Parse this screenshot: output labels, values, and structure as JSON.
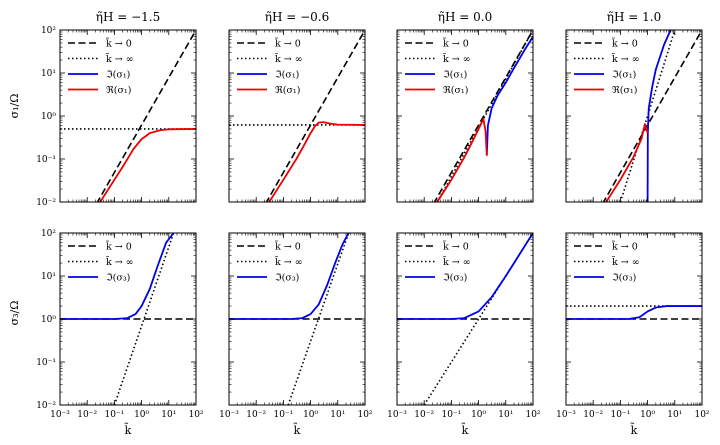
{
  "figure": {
    "row_ylabels": [
      "σ₁/Ω",
      "σ₃/Ω"
    ],
    "xlabel": "k̃",
    "x_tick_labels": [
      "10⁻³",
      "10⁻²",
      "10⁻¹",
      "10⁰",
      "10¹",
      "10²"
    ],
    "y_tick_labels": [
      "10⁻²",
      "10⁻¹",
      "10⁰",
      "10¹",
      "10²"
    ],
    "colors": {
      "black": "#000000",
      "blue": "#0000ee",
      "red": "#ee0000"
    }
  },
  "chart_data": [
    {
      "type": "line",
      "row": 0,
      "col": 0,
      "title": "η̃H = −1.5",
      "xscale": "log",
      "yscale": "log",
      "xlim": [
        0.001,
        100
      ],
      "ylim": [
        0.01,
        100
      ],
      "series": [
        {
          "name": "k̃ → 0",
          "style": "dashed",
          "color": "#000000",
          "x": [
            0.001,
            100
          ],
          "y": [
            0.0003,
            100
          ]
        },
        {
          "name": "k̃ → ∞",
          "style": "dotted",
          "color": "#000000",
          "x": [
            0.001,
            100
          ],
          "y": [
            0.5,
            0.5
          ]
        },
        {
          "name": "ℑ(σ₁)",
          "style": "solid",
          "color": "#0000ee",
          "x": [],
          "y": []
        },
        {
          "name": "ℜ(σ₁)",
          "style": "solid",
          "color": "#ee0000",
          "x": [
            0.03,
            0.1,
            0.2,
            0.5,
            1,
            2,
            5,
            10,
            100
          ],
          "y": [
            0.01,
            0.033,
            0.065,
            0.17,
            0.29,
            0.4,
            0.47,
            0.49,
            0.5
          ]
        }
      ],
      "legend": {
        "entries": [
          "k̃ → 0",
          "k̃ → ∞",
          "ℑ(σ₁)",
          "ℜ(σ₁)"
        ],
        "loc": "upper-left"
      }
    },
    {
      "type": "line",
      "row": 0,
      "col": 1,
      "title": "η̃H = −0.6",
      "xscale": "log",
      "yscale": "log",
      "xlim": [
        0.001,
        100
      ],
      "ylim": [
        0.01,
        100
      ],
      "series": [
        {
          "name": "k̃ → 0",
          "style": "dashed",
          "color": "#000000",
          "x": [
            0.001,
            100
          ],
          "y": [
            0.0003,
            100
          ]
        },
        {
          "name": "k̃ → ∞",
          "style": "dotted",
          "color": "#000000",
          "x": [
            0.001,
            100
          ],
          "y": [
            0.62,
            0.62
          ]
        },
        {
          "name": "ℑ(σ₁)",
          "style": "solid",
          "color": "#0000ee",
          "x": [],
          "y": []
        },
        {
          "name": "ℜ(σ₁)",
          "style": "solid",
          "color": "#ee0000",
          "x": [
            0.03,
            0.1,
            0.3,
            0.6,
            1,
            1.5,
            2,
            3,
            5,
            10,
            100
          ],
          "y": [
            0.01,
            0.033,
            0.1,
            0.22,
            0.4,
            0.6,
            0.7,
            0.72,
            0.67,
            0.63,
            0.62
          ]
        }
      ],
      "legend": {
        "entries": [
          "k̃ → 0",
          "k̃ → ∞",
          "ℑ(σ₁)",
          "ℜ(σ₁)"
        ],
        "loc": "upper-left"
      }
    },
    {
      "type": "line",
      "row": 0,
      "col": 2,
      "title": "η̃H = 0.0",
      "xscale": "log",
      "yscale": "log",
      "xlim": [
        0.001,
        100
      ],
      "ylim": [
        0.01,
        100
      ],
      "series": [
        {
          "name": "k̃ → 0",
          "style": "dashed",
          "color": "#000000",
          "x": [
            0.001,
            100
          ],
          "y": [
            0.0003,
            100
          ]
        },
        {
          "name": "k̃ → ∞",
          "style": "dotted",
          "color": "#000000",
          "x": [
            0.03,
            100
          ],
          "y": [
            0.01,
            100
          ]
        },
        {
          "name": "ℑ(σ₁)",
          "style": "solid",
          "color": "#0000ee",
          "x": [
            2,
            2.2,
            3,
            5,
            10,
            20,
            50,
            100
          ],
          "y": [
            0.12,
            0.6,
            1.5,
            3,
            6,
            13,
            35,
            70
          ]
        },
        {
          "name": "ℜ(σ₁)",
          "style": "solid",
          "color": "#ee0000",
          "x": [
            0.03,
            0.1,
            0.3,
            0.6,
            1,
            1.5,
            1.8,
            2
          ],
          "y": [
            0.01,
            0.033,
            0.11,
            0.26,
            0.5,
            0.85,
            0.45,
            0.12
          ]
        }
      ],
      "legend": {
        "entries": [
          "k̃ → 0",
          "k̃ → ∞",
          "ℑ(σ₁)",
          "ℜ(σ₁)"
        ],
        "loc": "upper-left"
      }
    },
    {
      "type": "line",
      "row": 0,
      "col": 3,
      "title": "η̃H = 1.0",
      "xscale": "log",
      "yscale": "log",
      "xlim": [
        0.001,
        100
      ],
      "ylim": [
        0.01,
        100
      ],
      "series": [
        {
          "name": "k̃ → 0",
          "style": "dashed",
          "color": "#000000",
          "x": [
            0.001,
            100
          ],
          "y": [
            0.0003,
            100
          ]
        },
        {
          "name": "k̃ → ∞",
          "style": "dotted",
          "color": "#000000",
          "x": [
            0.1,
            10
          ],
          "y": [
            0.01,
            100
          ]
        },
        {
          "name": "ℑ(σ₁)",
          "style": "solid",
          "color": "#0000ee",
          "x": [
            1,
            1.02,
            1.1,
            1.5,
            2,
            4,
            7
          ],
          "y": [
            0.01,
            0.4,
            1.5,
            5,
            12,
            45,
            100
          ]
        },
        {
          "name": "ℜ(σ₁)",
          "style": "solid",
          "color": "#ee0000",
          "x": [
            0.03,
            0.1,
            0.3,
            0.6,
            0.8,
            1
          ],
          "y": [
            0.01,
            0.033,
            0.11,
            0.3,
            0.65,
            0.4
          ]
        }
      ],
      "legend": {
        "entries": [
          "k̃ → 0",
          "k̃ → ∞",
          "ℑ(σ₁)",
          "ℜ(σ₁)"
        ],
        "loc": "upper-left"
      }
    },
    {
      "type": "line",
      "row": 1,
      "col": 0,
      "title": "",
      "xscale": "log",
      "yscale": "log",
      "xlim": [
        0.001,
        100
      ],
      "ylim": [
        0.01,
        100
      ],
      "series": [
        {
          "name": "k̃ → 0",
          "style": "dashed",
          "color": "#000000",
          "x": [
            0.001,
            100
          ],
          "y": [
            1,
            1
          ]
        },
        {
          "name": "k̃ → ∞",
          "style": "dotted",
          "color": "#000000",
          "x": [
            0.1,
            15
          ],
          "y": [
            0.01,
            100
          ]
        },
        {
          "name": "ℑ(σ₃)",
          "style": "solid",
          "color": "#0000ee",
          "x": [
            0.001,
            0.1,
            0.3,
            0.6,
            1,
            2,
            4,
            8,
            15
          ],
          "y": [
            1,
            1,
            1.05,
            1.3,
            2,
            5,
            18,
            60,
            100
          ]
        }
      ],
      "legend": {
        "entries": [
          "k̃ → 0",
          "k̃ → ∞",
          "ℑ(σ₃)"
        ],
        "loc": "upper-left"
      }
    },
    {
      "type": "line",
      "row": 1,
      "col": 1,
      "title": "",
      "xscale": "log",
      "yscale": "log",
      "xlim": [
        0.001,
        100
      ],
      "ylim": [
        0.01,
        100
      ],
      "series": [
        {
          "name": "k̃ → 0",
          "style": "dashed",
          "color": "#000000",
          "x": [
            0.001,
            100
          ],
          "y": [
            1,
            1
          ]
        },
        {
          "name": "k̃ → ∞",
          "style": "dotted",
          "color": "#000000",
          "x": [
            0.15,
            25
          ],
          "y": [
            0.01,
            100
          ]
        },
        {
          "name": "ℑ(σ₃)",
          "style": "solid",
          "color": "#0000ee",
          "x": [
            0.001,
            0.2,
            0.5,
            1,
            2,
            4,
            8,
            15,
            25
          ],
          "y": [
            1,
            1,
            1.05,
            1.3,
            2.2,
            6,
            20,
            55,
            100
          ]
        }
      ],
      "legend": {
        "entries": [
          "k̃ → 0",
          "k̃ → ∞",
          "ℑ(σ₃)"
        ],
        "loc": "upper-left"
      }
    },
    {
      "type": "line",
      "row": 1,
      "col": 2,
      "title": "",
      "xscale": "log",
      "yscale": "log",
      "xlim": [
        0.001,
        100
      ],
      "ylim": [
        0.01,
        100
      ],
      "series": [
        {
          "name": "k̃ → 0",
          "style": "dashed",
          "color": "#000000",
          "x": [
            0.001,
            100
          ],
          "y": [
            1,
            1
          ]
        },
        {
          "name": "k̃ → ∞",
          "style": "dotted",
          "color": "#000000",
          "x": [
            0.01,
            100
          ],
          "y": [
            0.01,
            100
          ]
        },
        {
          "name": "ℑ(σ₃)",
          "style": "solid",
          "color": "#0000ee",
          "x": [
            0.001,
            0.1,
            0.3,
            1,
            3,
            10,
            30,
            100
          ],
          "y": [
            1,
            1,
            1.05,
            1.5,
            3.2,
            10,
            30,
            100
          ]
        }
      ],
      "legend": {
        "entries": [
          "k̃ → 0",
          "k̃ → ∞",
          "ℑ(σ₃)"
        ],
        "loc": "upper-left"
      }
    },
    {
      "type": "line",
      "row": 1,
      "col": 3,
      "title": "",
      "xscale": "log",
      "yscale": "log",
      "xlim": [
        0.001,
        100
      ],
      "ylim": [
        0.01,
        100
      ],
      "series": [
        {
          "name": "k̃ → 0",
          "style": "dashed",
          "color": "#000000",
          "x": [
            0.001,
            100
          ],
          "y": [
            1,
            1
          ]
        },
        {
          "name": "k̃ → ∞",
          "style": "dotted",
          "color": "#000000",
          "x": [
            0.001,
            100
          ],
          "y": [
            2,
            2
          ]
        },
        {
          "name": "ℑ(σ₃)",
          "style": "solid",
          "color": "#0000ee",
          "x": [
            0.001,
            0.2,
            0.5,
            1,
            2,
            5,
            100
          ],
          "y": [
            1,
            1,
            1.1,
            1.5,
            1.85,
            2,
            2
          ]
        }
      ],
      "legend": {
        "entries": [
          "k̃ → 0",
          "k̃ → ∞",
          "ℑ(σ₃)"
        ],
        "loc": "upper-left"
      }
    }
  ]
}
